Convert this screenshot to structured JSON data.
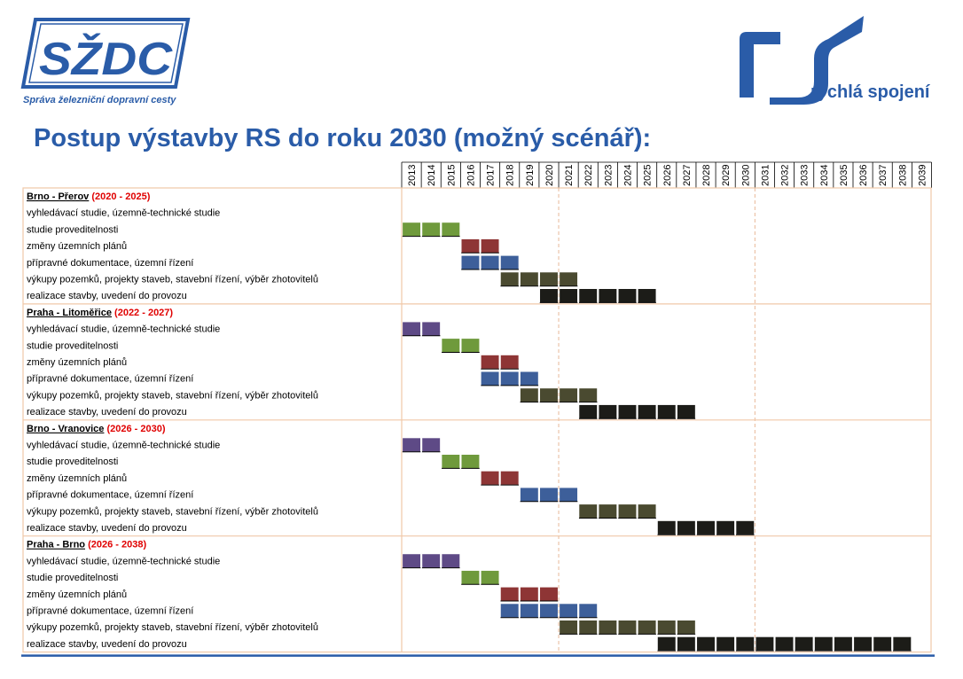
{
  "logos": {
    "szdc_text": "SŽDC",
    "szdc_caption": "Správa železniční dopravní cesty",
    "rs_text": "rychlá spojení"
  },
  "title": "Postup výstavby RS do roku 2030 (možný scénář):",
  "colors": {
    "accent": "#2a5ca8",
    "grid": "#f0c8a8",
    "dashed": "#e8b898",
    "period": "#e00000",
    "vyhledavaci": "#5e4a86",
    "proveditelnost": "#6f9a3c",
    "uzemni_plany": "#8e3535",
    "pripravne": "#3d5f9a",
    "vykupy": "#4a4a30",
    "realizace": "#1c1c18"
  },
  "chart_data": {
    "type": "gantt",
    "years": [
      2013,
      2014,
      2015,
      2016,
      2017,
      2018,
      2019,
      2020,
      2021,
      2022,
      2023,
      2024,
      2025,
      2026,
      2027,
      2028,
      2029,
      2030,
      2031,
      2032,
      2033,
      2034,
      2035,
      2036,
      2037,
      2038,
      2039
    ],
    "task_labels": {
      "vyhledavaci": "vyhledávací studie, územně-technické studie",
      "proveditelnost": "studie proveditelnosti",
      "uzemni_plany": "změny územních plánů",
      "pripravne": "přípravné dokumentace, územní řízení",
      "vykupy": "výkupy pozemků, projekty staveb, stavební řízení, výběr zhotovitelů",
      "realizace": "realizace stavby, uvedení do provozu"
    },
    "task_order": [
      "vyhledavaci",
      "proveditelnost",
      "uzemni_plany",
      "pripravne",
      "vykupy",
      "realizace"
    ],
    "segments": [
      {
        "name": "Brno - Přerov",
        "period": "(2020 - 2025)",
        "tasks": [
          {
            "task": "vyhledavaci",
            "start": null,
            "end": null
          },
          {
            "task": "proveditelnost",
            "start": 2013,
            "end": 2015
          },
          {
            "task": "uzemni_plany",
            "start": 2016,
            "end": 2017
          },
          {
            "task": "pripravne",
            "start": 2016,
            "end": 2018
          },
          {
            "task": "vykupy",
            "start": 2018,
            "end": 2021
          },
          {
            "task": "realizace",
            "start": 2020,
            "end": 2025
          }
        ]
      },
      {
        "name": "Praha - Litoměřice",
        "period": "(2022 - 2027)",
        "tasks": [
          {
            "task": "vyhledavaci",
            "start": 2013,
            "end": 2014
          },
          {
            "task": "proveditelnost",
            "start": 2015,
            "end": 2016
          },
          {
            "task": "uzemni_plany",
            "start": 2017,
            "end": 2018
          },
          {
            "task": "pripravne",
            "start": 2017,
            "end": 2019
          },
          {
            "task": "vykupy",
            "start": 2019,
            "end": 2022
          },
          {
            "task": "realizace",
            "start": 2022,
            "end": 2027
          }
        ]
      },
      {
        "name": "Brno - Vranovice",
        "period": "(2026 - 2030)",
        "tasks": [
          {
            "task": "vyhledavaci",
            "start": 2013,
            "end": 2014
          },
          {
            "task": "proveditelnost",
            "start": 2015,
            "end": 2016
          },
          {
            "task": "uzemni_plany",
            "start": 2017,
            "end": 2018
          },
          {
            "task": "pripravne",
            "start": 2019,
            "end": 2021
          },
          {
            "task": "vykupy",
            "start": 2022,
            "end": 2025
          },
          {
            "task": "realizace",
            "start": 2026,
            "end": 2030
          }
        ]
      },
      {
        "name": "Praha - Brno",
        "period": "(2026 - 2038)",
        "tasks": [
          {
            "task": "vyhledavaci",
            "start": 2013,
            "end": 2015
          },
          {
            "task": "proveditelnost",
            "start": 2016,
            "end": 2017
          },
          {
            "task": "uzemni_plany",
            "start": 2018,
            "end": 2020
          },
          {
            "task": "pripravne",
            "start": 2018,
            "end": 2022
          },
          {
            "task": "vykupy",
            "start": 2021,
            "end": 2027
          },
          {
            "task": "realizace",
            "start": 2026,
            "end": 2038
          }
        ]
      }
    ]
  }
}
